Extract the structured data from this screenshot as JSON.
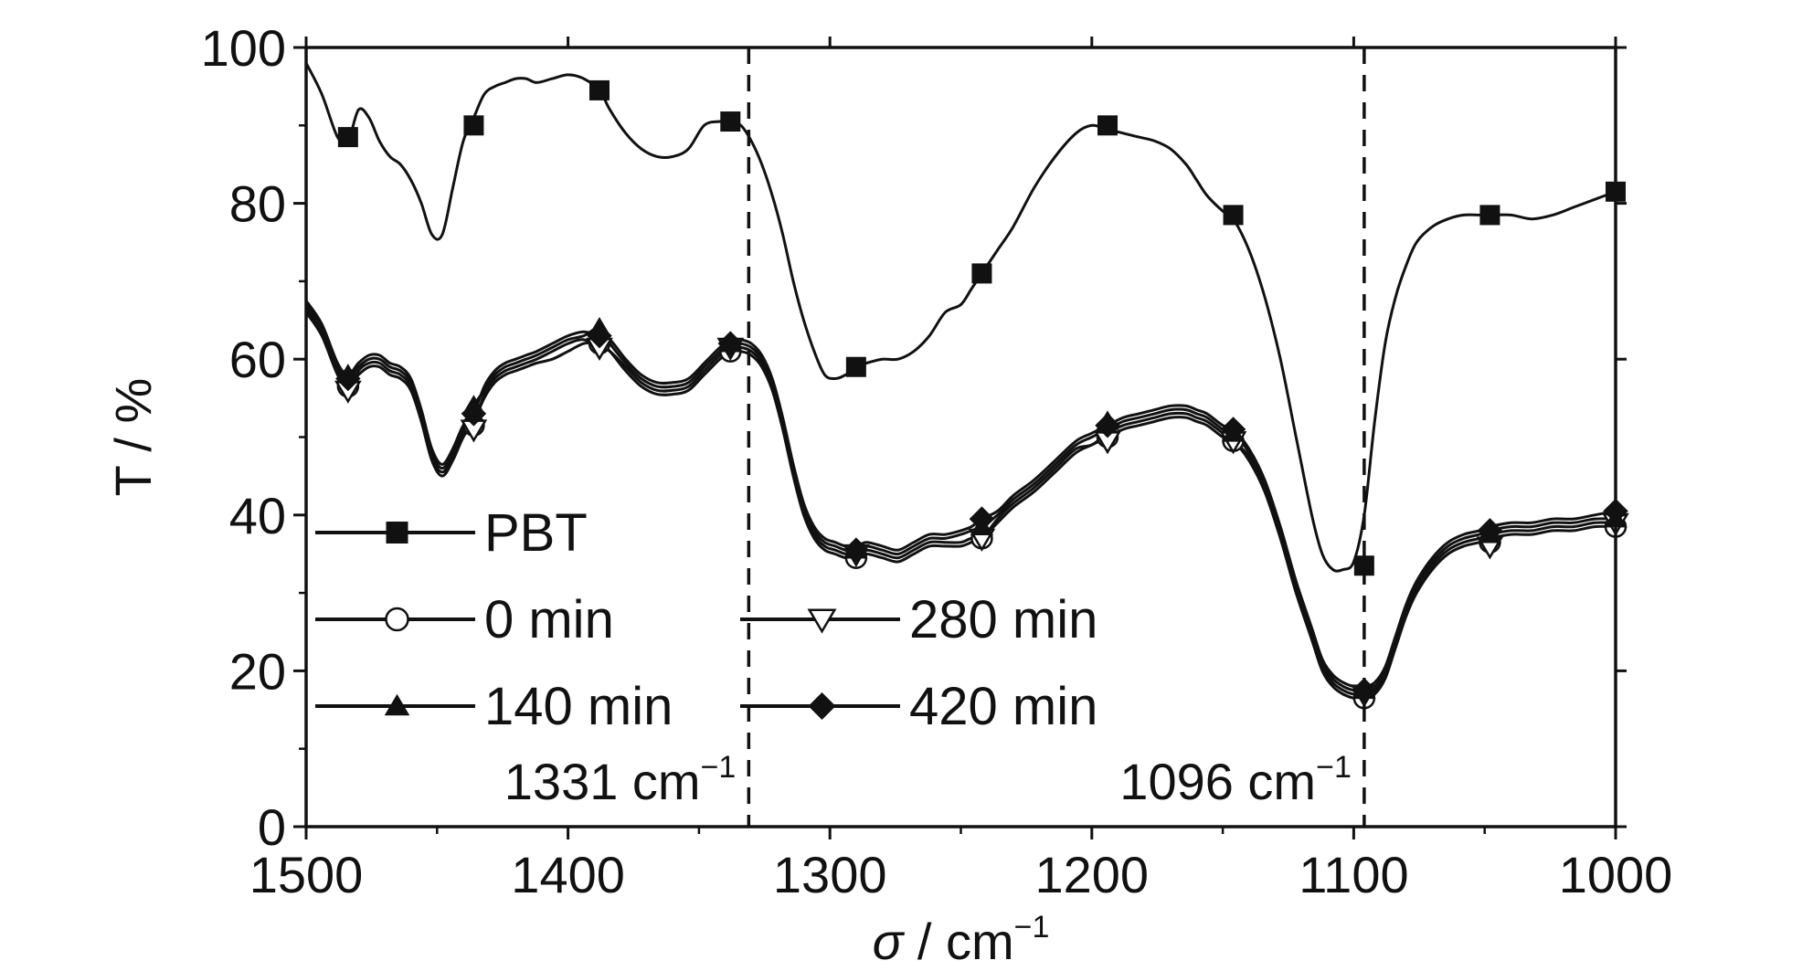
{
  "chart_data": {
    "type": "line",
    "xlabel": "σ / cm",
    "xlabel_sup": "−1",
    "ylabel": "T / %",
    "xlim": [
      1500,
      1000
    ],
    "ylim": [
      0,
      100
    ],
    "x_ticks": [
      1500,
      1400,
      1300,
      1200,
      1100,
      1000
    ],
    "y_ticks": [
      0,
      20,
      40,
      60,
      80,
      100
    ],
    "annotations": [
      {
        "x": 1331,
        "text": "1331 cm",
        "sup": "−1"
      },
      {
        "x": 1096,
        "text": "1096 cm",
        "sup": "−1"
      }
    ],
    "series": [
      {
        "name": "PBT",
        "marker": "square-filled",
        "x": [
          1500,
          1494,
          1488,
          1484,
          1480,
          1476,
          1472,
          1468,
          1464,
          1460,
          1456,
          1452,
          1448,
          1444,
          1440,
          1436,
          1432,
          1428,
          1424,
          1420,
          1416,
          1412,
          1406,
          1400,
          1394,
          1388,
          1384,
          1378,
          1372,
          1366,
          1360,
          1354,
          1348,
          1342,
          1338,
          1334,
          1330,
          1326,
          1322,
          1318,
          1314,
          1310,
          1306,
          1302,
          1298,
          1294,
          1290,
          1286,
          1280,
          1274,
          1268,
          1262,
          1256,
          1250,
          1246,
          1242,
          1236,
          1230,
          1222,
          1214,
          1206,
          1200,
          1194,
          1188,
          1182,
          1176,
          1170,
          1164,
          1160,
          1156,
          1150,
          1146,
          1140,
          1134,
          1128,
          1122,
          1116,
          1112,
          1108,
          1104,
          1100,
          1096,
          1092,
          1088,
          1084,
          1080,
          1076,
          1070,
          1064,
          1058,
          1052,
          1048,
          1040,
          1032,
          1024,
          1016,
          1008,
          1000
        ],
        "y": [
          98,
          94,
          88.5,
          88,
          92,
          91,
          88,
          86,
          85,
          83,
          80,
          76,
          76,
          82,
          88,
          91,
          94,
          95,
          95.5,
          96,
          96,
          95.5,
          96,
          96.5,
          96,
          94.5,
          92,
          89,
          87,
          86,
          86,
          87,
          90,
          90.5,
          90.5,
          90,
          88,
          85,
          81,
          76,
          70,
          65,
          61,
          58,
          57.5,
          58,
          59,
          59.5,
          60,
          60,
          61,
          63,
          66,
          67,
          69,
          71,
          74,
          77,
          82,
          86,
          89,
          90,
          89.5,
          89,
          88.5,
          88,
          87,
          85,
          83,
          81,
          79,
          78,
          74,
          68,
          60,
          50,
          40,
          35,
          33,
          33,
          34,
          40,
          52,
          62,
          68,
          72,
          75,
          77,
          78,
          78.5,
          78.5,
          78.5,
          78.5,
          78,
          78.5,
          79.5,
          80.5,
          81.5
        ]
      },
      {
        "name": "0 min",
        "marker": "circle-open",
        "x": [
          1500,
          1494,
          1488,
          1484,
          1480,
          1476,
          1472,
          1468,
          1464,
          1460,
          1456,
          1452,
          1448,
          1444,
          1440,
          1436,
          1432,
          1428,
          1424,
          1420,
          1416,
          1412,
          1406,
          1400,
          1394,
          1388,
          1384,
          1378,
          1372,
          1366,
          1360,
          1354,
          1348,
          1342,
          1338,
          1334,
          1330,
          1326,
          1322,
          1318,
          1314,
          1310,
          1306,
          1302,
          1298,
          1294,
          1290,
          1286,
          1280,
          1274,
          1268,
          1262,
          1256,
          1250,
          1246,
          1242,
          1236,
          1230,
          1222,
          1214,
          1206,
          1200,
          1194,
          1188,
          1182,
          1176,
          1170,
          1164,
          1160,
          1156,
          1150,
          1146,
          1140,
          1134,
          1128,
          1122,
          1116,
          1112,
          1108,
          1104,
          1100,
          1096,
          1092,
          1088,
          1084,
          1080,
          1076,
          1070,
          1064,
          1058,
          1052,
          1048,
          1040,
          1032,
          1024,
          1016,
          1008,
          1000
        ],
        "y": [
          66,
          63,
          58,
          56.5,
          58,
          59,
          59,
          58,
          57.5,
          56,
          52,
          47,
          45,
          47,
          50,
          52,
          55,
          57,
          58,
          58.5,
          59,
          59.5,
          60,
          61,
          62,
          62,
          61,
          58.5,
          56.5,
          55.5,
          55.5,
          56,
          58,
          60,
          61,
          61,
          60.5,
          59,
          56,
          51,
          45,
          40,
          37,
          35.5,
          35,
          34.5,
          34.5,
          35,
          34.5,
          34,
          35,
          36,
          36,
          36,
          36.5,
          37,
          39,
          41,
          43,
          45.5,
          48,
          49,
          50,
          51,
          51.5,
          52,
          52.5,
          52.5,
          52,
          51.5,
          50,
          49.5,
          47,
          43,
          37,
          30,
          24,
          20,
          18,
          17,
          16.5,
          16.5,
          17,
          19,
          23,
          27,
          30,
          33,
          35,
          36,
          36.5,
          37,
          37.5,
          37.5,
          38,
          38,
          38.5,
          38.5
        ]
      },
      {
        "name": "280 min",
        "marker": "triangle-down-open",
        "x": [
          1500,
          1494,
          1488,
          1484,
          1480,
          1476,
          1472,
          1468,
          1464,
          1460,
          1456,
          1452,
          1448,
          1444,
          1440,
          1436,
          1432,
          1428,
          1424,
          1420,
          1416,
          1412,
          1406,
          1400,
          1394,
          1388,
          1384,
          1378,
          1372,
          1366,
          1360,
          1354,
          1348,
          1342,
          1338,
          1334,
          1330,
          1326,
          1322,
          1318,
          1314,
          1310,
          1306,
          1302,
          1298,
          1294,
          1290,
          1286,
          1280,
          1274,
          1268,
          1262,
          1256,
          1250,
          1246,
          1242,
          1236,
          1230,
          1222,
          1214,
          1206,
          1200,
          1194,
          1188,
          1182,
          1176,
          1170,
          1164,
          1160,
          1156,
          1150,
          1146,
          1140,
          1134,
          1128,
          1122,
          1116,
          1112,
          1108,
          1104,
          1100,
          1096,
          1092,
          1088,
          1084,
          1080,
          1076,
          1070,
          1064,
          1058,
          1052,
          1048,
          1040,
          1032,
          1024,
          1016,
          1008,
          1000
        ],
        "y": [
          66.5,
          63.5,
          58.5,
          56,
          58.5,
          59.5,
          59.5,
          58.5,
          58,
          56.5,
          52.5,
          47.5,
          45.5,
          47.5,
          50.5,
          51.5,
          55.5,
          57.5,
          58.5,
          59,
          59.5,
          60,
          61,
          62,
          62.5,
          61.5,
          61,
          59,
          57,
          56,
          56,
          56.5,
          58.5,
          60.5,
          61.5,
          61.5,
          61,
          59.5,
          56.5,
          51.5,
          45.5,
          40.5,
          37.5,
          36,
          35.5,
          35,
          35,
          35.5,
          35,
          34.5,
          35.5,
          36.5,
          36.5,
          36.5,
          37,
          37,
          39.5,
          41.5,
          43.5,
          46,
          48.5,
          49,
          50.5,
          51.5,
          52,
          52.5,
          53,
          53,
          52.5,
          52,
          50.5,
          49.5,
          47.5,
          43.5,
          37.5,
          30.5,
          24.5,
          20.5,
          18.5,
          17.5,
          17,
          17,
          17.5,
          19.5,
          23.5,
          27.5,
          30.5,
          33.5,
          35.5,
          36.5,
          37,
          37.5,
          38,
          38,
          38.5,
          38.5,
          39,
          39
        ]
      },
      {
        "name": "140 min",
        "marker": "triangle-up-filled",
        "x": [
          1500,
          1494,
          1488,
          1484,
          1480,
          1476,
          1472,
          1468,
          1464,
          1460,
          1456,
          1452,
          1448,
          1444,
          1440,
          1436,
          1432,
          1428,
          1424,
          1420,
          1416,
          1412,
          1406,
          1400,
          1394,
          1388,
          1384,
          1378,
          1372,
          1366,
          1360,
          1354,
          1348,
          1342,
          1338,
          1334,
          1330,
          1326,
          1322,
          1318,
          1314,
          1310,
          1306,
          1302,
          1298,
          1294,
          1290,
          1286,
          1280,
          1274,
          1268,
          1262,
          1256,
          1250,
          1246,
          1242,
          1236,
          1230,
          1222,
          1214,
          1206,
          1200,
          1194,
          1188,
          1182,
          1176,
          1170,
          1164,
          1160,
          1156,
          1150,
          1146,
          1140,
          1134,
          1128,
          1122,
          1116,
          1112,
          1108,
          1104,
          1100,
          1096,
          1092,
          1088,
          1084,
          1080,
          1076,
          1070,
          1064,
          1058,
          1052,
          1048,
          1040,
          1032,
          1024,
          1016,
          1008,
          1000
        ],
        "y": [
          67,
          64,
          59,
          57.5,
          59,
          60,
          60,
          59,
          58.5,
          57,
          53,
          48,
          46,
          48,
          51,
          54,
          56,
          58,
          59,
          59.5,
          60,
          60.5,
          61.5,
          62.5,
          63,
          64,
          62,
          59.5,
          57.5,
          56.5,
          56.5,
          57,
          59,
          61,
          62,
          62,
          61.5,
          60,
          57,
          52,
          46,
          41,
          38,
          36.5,
          36,
          35.5,
          35.5,
          36,
          35.5,
          35,
          36,
          37,
          37,
          37.5,
          38,
          38.5,
          40,
          42,
          44,
          46.5,
          49,
          50,
          51,
          52,
          52.5,
          53,
          53.5,
          53.5,
          53,
          52.5,
          51,
          50.5,
          48,
          44,
          38,
          31,
          25,
          21,
          19,
          18,
          17.5,
          17.5,
          18,
          20,
          24,
          28,
          31,
          34,
          36,
          37,
          37.5,
          38,
          38.5,
          38.5,
          39,
          39,
          39.5,
          39.5
        ]
      },
      {
        "name": "420 min",
        "marker": "diamond-filled",
        "x": [
          1500,
          1494,
          1488,
          1484,
          1480,
          1476,
          1472,
          1468,
          1464,
          1460,
          1456,
          1452,
          1448,
          1444,
          1440,
          1436,
          1432,
          1428,
          1424,
          1420,
          1416,
          1412,
          1406,
          1400,
          1394,
          1388,
          1384,
          1378,
          1372,
          1366,
          1360,
          1354,
          1348,
          1342,
          1338,
          1334,
          1330,
          1326,
          1322,
          1318,
          1314,
          1310,
          1306,
          1302,
          1298,
          1294,
          1290,
          1286,
          1280,
          1274,
          1268,
          1262,
          1256,
          1250,
          1246,
          1242,
          1236,
          1230,
          1222,
          1214,
          1206,
          1200,
          1194,
          1188,
          1182,
          1176,
          1170,
          1164,
          1160,
          1156,
          1150,
          1146,
          1140,
          1134,
          1128,
          1122,
          1116,
          1112,
          1108,
          1104,
          1100,
          1096,
          1092,
          1088,
          1084,
          1080,
          1076,
          1070,
          1064,
          1058,
          1052,
          1048,
          1040,
          1032,
          1024,
          1016,
          1008,
          1000
        ],
        "y": [
          67.5,
          64.5,
          59.5,
          58,
          59.5,
          60.5,
          60.5,
          59.5,
          59,
          57.5,
          53.5,
          48.5,
          46.5,
          48.5,
          51.5,
          53,
          56.5,
          58.5,
          59.5,
          60,
          60.5,
          61,
          62,
          63,
          63.5,
          63,
          62.5,
          60,
          58,
          57,
          57,
          57.5,
          59.5,
          61.5,
          62.5,
          62.5,
          62,
          60.5,
          57.5,
          52.5,
          46.5,
          41.5,
          38.5,
          37,
          36.5,
          36,
          36,
          36.5,
          36,
          35.5,
          36.5,
          37.5,
          37.5,
          38,
          38.5,
          39.5,
          40.5,
          42.5,
          44.5,
          47,
          49.5,
          50.5,
          51.5,
          52.5,
          53,
          53.5,
          54,
          54,
          53.5,
          53,
          51.5,
          51,
          48.5,
          44.5,
          38.5,
          31.5,
          25.5,
          21.5,
          19.5,
          18.5,
          18,
          18,
          18.5,
          20.5,
          24.5,
          28.5,
          31.5,
          34.5,
          36.5,
          37.5,
          38,
          38.5,
          39,
          39,
          39.5,
          39.5,
          40,
          40.5
        ]
      }
    ],
    "markers": {
      "PBT": [
        [
          1484,
          88.5
        ],
        [
          1436,
          90
        ],
        [
          1388,
          94.5
        ],
        [
          1338,
          90.5
        ],
        [
          1290,
          59
        ],
        [
          1242,
          71
        ],
        [
          1194,
          90
        ],
        [
          1146,
          78.5
        ],
        [
          1096,
          33.5
        ],
        [
          1048,
          78.5
        ],
        [
          1000,
          81.5
        ]
      ],
      "0 min": [
        [
          1484,
          56.5
        ],
        [
          1436,
          51.5
        ],
        [
          1388,
          62
        ],
        [
          1338,
          61
        ],
        [
          1290,
          34.5
        ],
        [
          1242,
          37
        ],
        [
          1194,
          50
        ],
        [
          1146,
          49.5
        ],
        [
          1096,
          16.5
        ],
        [
          1048,
          36.5
        ],
        [
          1000,
          38.5
        ]
      ],
      "280 min": [
        [
          1484,
          56
        ],
        [
          1436,
          51
        ],
        [
          1388,
          61.5
        ],
        [
          1338,
          61.5
        ],
        [
          1290,
          35
        ],
        [
          1242,
          37
        ],
        [
          1194,
          49.5
        ],
        [
          1146,
          49.5
        ],
        [
          1096,
          17
        ],
        [
          1048,
          36
        ],
        [
          1000,
          39
        ]
      ],
      "140 min": [
        [
          1484,
          58
        ],
        [
          1436,
          54
        ],
        [
          1388,
          64
        ],
        [
          1338,
          62
        ],
        [
          1290,
          35.5
        ],
        [
          1242,
          38.5
        ],
        [
          1194,
          52
        ],
        [
          1146,
          50.5
        ],
        [
          1096,
          17.5
        ],
        [
          1048,
          37.5
        ],
        [
          1000,
          39.5
        ]
      ],
      "420 min": [
        [
          1484,
          57.5
        ],
        [
          1436,
          53
        ],
        [
          1388,
          63
        ],
        [
          1338,
          62
        ],
        [
          1290,
          35.5
        ],
        [
          1242,
          39.5
        ],
        [
          1194,
          51.5
        ],
        [
          1146,
          51
        ],
        [
          1096,
          17.5
        ],
        [
          1048,
          38
        ],
        [
          1000,
          40.5
        ]
      ]
    }
  },
  "legend": {
    "items": [
      {
        "label": "PBT",
        "marker": "square-filled"
      },
      {
        "label": "0 min",
        "marker": "circle-open"
      },
      {
        "label": "280 min",
        "marker": "triangle-down-open"
      },
      {
        "label": "140 min",
        "marker": "triangle-up-filled"
      },
      {
        "label": "420 min",
        "marker": "diamond-filled"
      }
    ]
  },
  "colors": {
    "line": "#111111",
    "background": "#ffffff"
  }
}
